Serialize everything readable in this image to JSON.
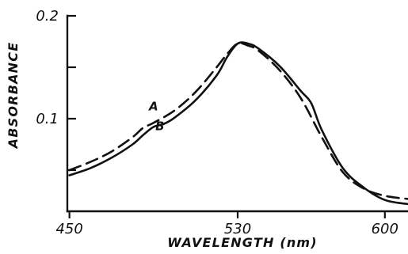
{
  "chart_data": {
    "type": "line",
    "title": "",
    "xlabel": "WAVELENGTH (nm)",
    "ylabel": "ABSORBANCE",
    "xlim": [
      449,
      611
    ],
    "ylim": [
      0.01,
      0.2
    ],
    "x_ticks": [
      450,
      530,
      600
    ],
    "x_tick_labels": [
      "450",
      "530",
      "600"
    ],
    "y_ticks": [
      0.2,
      0.15,
      0.1,
      0.05
    ],
    "y_tick_labels": [
      "0.2",
      "",
      "0.1",
      ""
    ],
    "grid": false,
    "series": [
      {
        "name": "A",
        "style": "dashed",
        "x": [
          450,
          460,
          470,
          480,
          485,
          490,
          500,
          510,
          520,
          525,
          530,
          535,
          540,
          550,
          560,
          570,
          580,
          590,
          600,
          611
        ],
        "y": [
          0.05,
          0.058,
          0.068,
          0.082,
          0.091,
          0.096,
          0.108,
          0.126,
          0.15,
          0.163,
          0.173,
          0.171,
          0.166,
          0.147,
          0.12,
          0.082,
          0.048,
          0.032,
          0.025,
          0.022
        ]
      },
      {
        "name": "B",
        "style": "solid",
        "x": [
          450,
          460,
          470,
          480,
          485,
          490,
          495,
          500,
          510,
          520,
          525,
          530,
          535,
          540,
          550,
          560,
          565,
          570,
          580,
          590,
          600,
          611
        ],
        "y": [
          0.045,
          0.052,
          0.062,
          0.075,
          0.084,
          0.092,
          0.095,
          0.101,
          0.118,
          0.142,
          0.16,
          0.173,
          0.173,
          0.168,
          0.151,
          0.127,
          0.115,
          0.089,
          0.052,
          0.033,
          0.021,
          0.017
        ]
      }
    ],
    "annotations": [
      {
        "text": "A",
        "x": 490,
        "y": 0.108
      },
      {
        "text": "B",
        "x": 493,
        "y": 0.089
      }
    ]
  }
}
